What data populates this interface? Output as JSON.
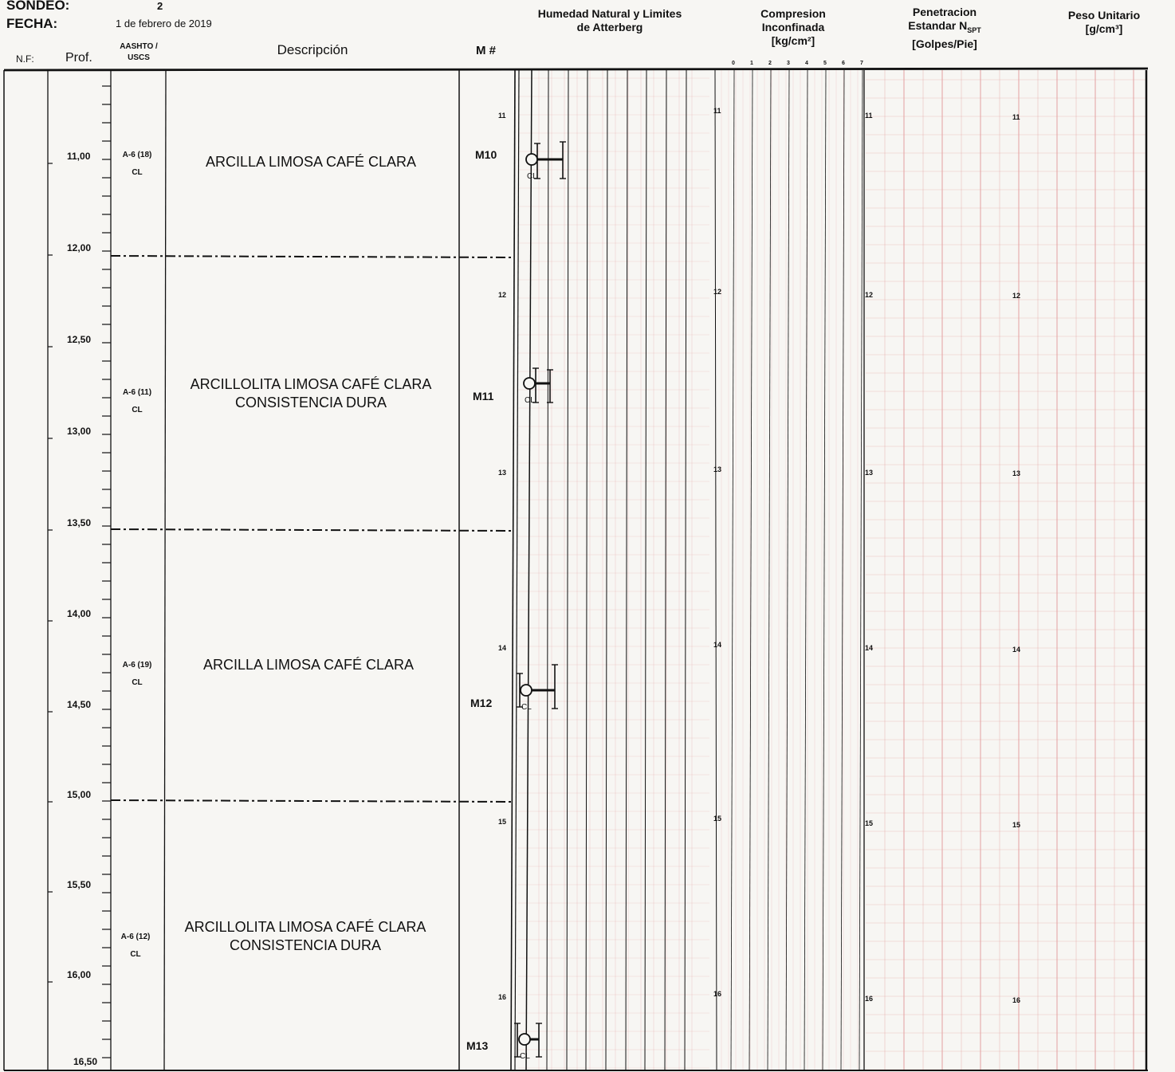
{
  "header": {
    "sondeo_label": "SONDEO:",
    "sondeo_value": "2",
    "fecha_label": "FECHA:",
    "fecha_value": "1 de febrero de 2019"
  },
  "columns": {
    "nf": "N.F:",
    "prof": "Prof.",
    "aashto_line1": "AASHTO /",
    "aashto_line2": "USCS",
    "descripcion": "Descripción",
    "muestra": "M #",
    "humedad_line1": "Humedad Natural y Limites",
    "humedad_line2": "de Atterberg",
    "compresion_line1": "Compresion",
    "compresion_line2": "Inconfinada",
    "compresion_line3": "[kg/cm²]",
    "penetracion_line1": "Penetracion",
    "penetracion_line2": "Estandar N",
    "penetracion_sub": "SPT",
    "penetracion_line3": "[Golpes/Pie]",
    "peso_line1": "Peso Unitario",
    "peso_line2": "[g/cm³]"
  },
  "depth_marks": [
    "11,00",
    "12,00",
    "12,50",
    "13,00",
    "13,50",
    "14,00",
    "14,50",
    "15,00",
    "15,50",
    "16,00",
    "16,50"
  ],
  "strata": [
    {
      "aashto": "A-6 (18)",
      "uscs": "CL",
      "description_line1": "ARCILLA LIMOSA CAFÉ CLARA",
      "description_line2": "",
      "sample": "M10"
    },
    {
      "aashto": "A-6 (11)",
      "uscs": "CL",
      "description_line1": "ARCILLOLITA  LIMOSA CAFÉ CLARA",
      "description_line2": "CONSISTENCIA DURA",
      "sample": "M11"
    },
    {
      "aashto": "A-6 (19)",
      "uscs": "CL",
      "description_line1": "ARCILLA LIMOSA CAFÉ CLARA",
      "description_line2": "",
      "sample": "M12"
    },
    {
      "aashto": "A-6 (12)",
      "uscs": "CL",
      "description_line1": "ARCILLOLITA LIMOSA CAFÉ CLARA",
      "description_line2": "CONSISTENCIA DURA",
      "sample": "M13"
    }
  ],
  "graph_depth_ticks": [
    "11",
    "12",
    "13",
    "14",
    "15",
    "16"
  ],
  "compresion_scale": [
    "0",
    "1",
    "2",
    "3",
    "4",
    "5",
    "6",
    "7"
  ],
  "atterberg_marker_label": "CL",
  "colors": {
    "paper": "#f7f6f3",
    "ink": "#111111",
    "grid_red": "#e3a0a0"
  }
}
